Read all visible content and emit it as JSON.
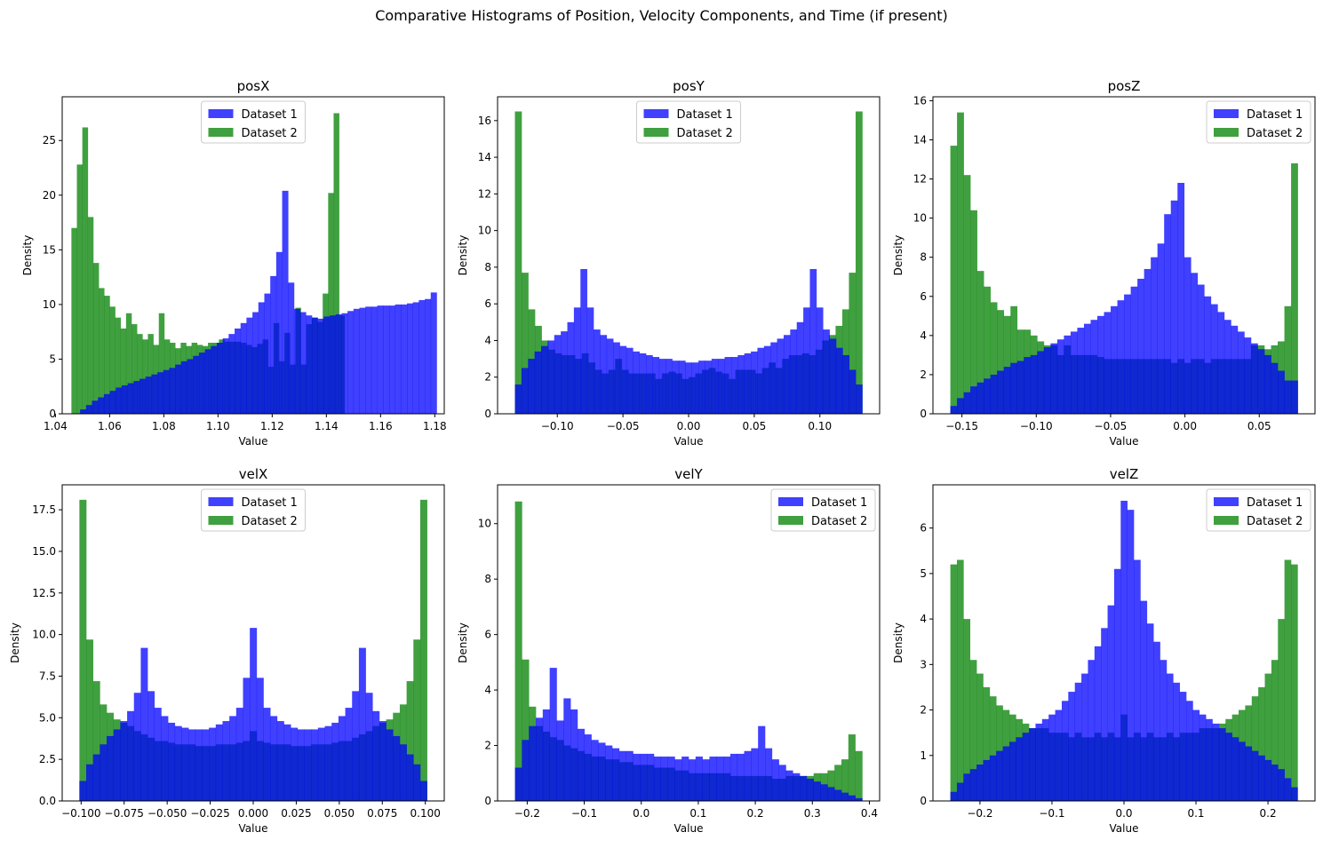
{
  "figure": {
    "title": "Comparative Histograms of Position, Velocity Components, and Time (if present)"
  },
  "colors": {
    "dataset1": "#0000ff",
    "dataset2": "#008000",
    "overlap": "#0f6f3f",
    "axis": "#000000"
  },
  "chart_data": [
    {
      "type": "bar",
      "title": "posX",
      "xlabel": "Value",
      "ylabel": "Density",
      "xlim": [
        1.0425,
        1.1835
      ],
      "ylim": [
        0,
        29
      ],
      "xticks": [
        1.04,
        1.06,
        1.08,
        1.1,
        1.12,
        1.14,
        1.16,
        1.18
      ],
      "xtick_labels": [
        "1.04",
        "1.06",
        "1.08",
        "1.10",
        "1.12",
        "1.14",
        "1.16",
        "1.18"
      ],
      "yticks": [
        0,
        5,
        10,
        15,
        20,
        25
      ],
      "ytick_labels": [
        "0",
        "5",
        "10",
        "15",
        "20",
        "25"
      ],
      "legend": {
        "position": "upper-center",
        "labels": [
          "Dataset 1",
          "Dataset 2"
        ]
      },
      "series": [
        {
          "name": "Dataset 1",
          "range": [
            1.0491,
            1.1807
          ],
          "values": [
            0.4,
            0.8,
            1.2,
            1.5,
            1.8,
            2.1,
            2.4,
            2.6,
            2.8,
            3.0,
            3.2,
            3.4,
            3.6,
            3.8,
            4.0,
            4.2,
            4.5,
            4.8,
            5.0,
            5.3,
            5.6,
            5.9,
            6.2,
            6.5,
            6.9,
            7.3,
            7.8,
            8.3,
            8.8,
            9.3,
            10.2,
            11.0,
            12.6,
            14.8,
            20.4,
            12.0,
            9.6,
            9.3,
            9.0,
            8.8,
            8.7,
            8.9,
            9.0,
            9.1,
            9.2,
            9.4,
            9.6,
            9.7,
            9.8,
            9.8,
            9.9,
            9.9,
            9.9,
            10.0,
            10.0,
            10.1,
            10.2,
            10.4,
            10.5,
            11.1
          ]
        },
        {
          "name": "Dataset 2",
          "range": [
            1.0459,
            1.1467
          ],
          "values": [
            17.0,
            22.8,
            26.2,
            18.0,
            13.8,
            11.5,
            10.8,
            9.8,
            8.8,
            7.8,
            9.2,
            8.2,
            7.3,
            6.8,
            7.3,
            6.3,
            9.2,
            6.8,
            6.5,
            6.0,
            6.5,
            6.2,
            6.5,
            6.3,
            6.2,
            6.5,
            6.5,
            6.8,
            6.6,
            6.6,
            6.6,
            6.5,
            6.3,
            6.1,
            6.4,
            6.8,
            4.3,
            8.3,
            4.8,
            7.4,
            4.5,
            9.7,
            4.5,
            8.2,
            8.8,
            8.4,
            11.0,
            20.2,
            27.5,
            9.0
          ]
        }
      ]
    },
    {
      "type": "bar",
      "title": "posY",
      "xlabel": "Value",
      "ylabel": "Density",
      "xlim": [
        -0.1455,
        0.1455
      ],
      "ylim": [
        0,
        17.3
      ],
      "xticks": [
        -0.1,
        -0.05,
        0.0,
        0.05,
        0.1
      ],
      "xtick_labels": [
        "−0.10",
        "−0.05",
        "0.00",
        "0.05",
        "0.10"
      ],
      "yticks": [
        0,
        2,
        4,
        6,
        8,
        10,
        12,
        14,
        16
      ],
      "ytick_labels": [
        "0",
        "2",
        "4",
        "6",
        "8",
        "10",
        "12",
        "14",
        "16"
      ],
      "legend": {
        "position": "upper-center",
        "labels": [
          "Dataset 1",
          "Dataset 2"
        ]
      },
      "series": [
        {
          "name": "Dataset 1",
          "range": [
            -0.1323,
            0.1323
          ],
          "values": [
            1.6,
            2.5,
            3.0,
            3.4,
            3.7,
            4.0,
            4.3,
            4.5,
            5.0,
            5.8,
            7.9,
            5.8,
            4.6,
            4.3,
            4.1,
            3.9,
            3.7,
            3.6,
            3.4,
            3.3,
            3.2,
            3.1,
            3.0,
            3.0,
            2.9,
            2.9,
            2.8,
            2.8,
            2.9,
            2.9,
            3.0,
            3.0,
            3.1,
            3.1,
            3.2,
            3.3,
            3.4,
            3.6,
            3.7,
            3.9,
            4.1,
            4.3,
            4.6,
            5.0,
            5.8,
            7.9,
            5.8,
            4.6,
            4.1,
            3.6,
            3.2,
            2.4,
            1.6
          ]
        },
        {
          "name": "Dataset 2",
          "range": [
            -0.1323,
            0.1323
          ],
          "values": [
            16.5,
            7.7,
            5.7,
            4.8,
            4.0,
            3.5,
            3.3,
            3.2,
            3.2,
            3.0,
            3.3,
            2.8,
            2.4,
            2.2,
            2.4,
            3.0,
            2.4,
            2.2,
            2.2,
            2.2,
            2.2,
            1.9,
            2.2,
            2.3,
            2.2,
            1.9,
            2.0,
            2.2,
            2.4,
            2.5,
            2.3,
            2.2,
            1.9,
            2.4,
            2.4,
            2.4,
            2.2,
            2.5,
            2.8,
            2.5,
            3.0,
            3.2,
            3.2,
            3.3,
            3.2,
            3.5,
            4.0,
            4.3,
            4.8,
            5.7,
            7.7,
            16.5
          ]
        }
      ]
    },
    {
      "type": "bar",
      "title": "posZ",
      "xlabel": "Value",
      "ylabel": "Density",
      "xlim": [
        -0.1695,
        0.0875
      ],
      "ylim": [
        0,
        16.2
      ],
      "xticks": [
        -0.15,
        -0.1,
        -0.05,
        0.0,
        0.05
      ],
      "xtick_labels": [
        "−0.15",
        "−0.10",
        "−0.05",
        "0.00",
        "0.05"
      ],
      "yticks": [
        0,
        2,
        4,
        6,
        8,
        10,
        12,
        14,
        16
      ],
      "ytick_labels": [
        "0",
        "2",
        "4",
        "6",
        "8",
        "10",
        "12",
        "14",
        "16"
      ],
      "legend": {
        "position": "upper-right",
        "labels": [
          "Dataset 1",
          "Dataset 2"
        ]
      },
      "series": [
        {
          "name": "Dataset 1",
          "range": [
            -0.1578,
            0.0759
          ],
          "values": [
            0.4,
            0.8,
            1.1,
            1.4,
            1.6,
            1.8,
            2.0,
            2.2,
            2.4,
            2.6,
            2.7,
            2.9,
            3.0,
            3.2,
            3.4,
            3.6,
            3.8,
            4.0,
            4.2,
            4.4,
            4.6,
            4.8,
            5.0,
            5.2,
            5.5,
            5.8,
            6.1,
            6.5,
            6.9,
            7.4,
            8.0,
            8.7,
            10.2,
            10.9,
            11.8,
            8.0,
            7.2,
            6.6,
            6.0,
            5.6,
            5.2,
            4.8,
            4.5,
            4.2,
            3.9,
            3.6,
            3.3,
            3.0,
            2.6,
            2.2,
            1.7,
            1.7
          ]
        },
        {
          "name": "Dataset 2",
          "range": [
            -0.1578,
            0.0759
          ],
          "values": [
            13.7,
            15.4,
            12.2,
            10.4,
            7.3,
            6.5,
            5.7,
            5.3,
            5.0,
            5.5,
            4.3,
            4.3,
            4.0,
            3.7,
            3.5,
            3.5,
            3.0,
            3.5,
            3.0,
            3.0,
            3.0,
            3.0,
            2.9,
            2.8,
            2.8,
            2.8,
            2.8,
            2.8,
            2.8,
            2.8,
            2.8,
            2.8,
            2.8,
            2.6,
            2.8,
            2.6,
            2.8,
            2.8,
            2.6,
            2.8,
            2.8,
            2.8,
            2.8,
            2.8,
            2.8,
            3.5,
            3.5,
            3.3,
            3.5,
            3.7,
            5.5,
            12.8
          ]
        }
      ]
    },
    {
      "type": "bar",
      "title": "velX",
      "xlabel": "Value",
      "ylabel": "Density",
      "xlim": [
        -0.111,
        0.111
      ],
      "ylim": [
        0,
        19
      ],
      "xticks": [
        -0.1,
        -0.075,
        -0.05,
        -0.025,
        0.0,
        0.025,
        0.05,
        0.075,
        0.1
      ],
      "xtick_labels": [
        "−0.100",
        "−0.075",
        "−0.050",
        "−0.025",
        "0.000",
        "0.025",
        "0.050",
        "0.075",
        "0.100"
      ],
      "yticks": [
        0,
        2.5,
        5.0,
        7.5,
        10.0,
        12.5,
        15.0,
        17.5
      ],
      "ytick_labels": [
        "0.0",
        "2.5",
        "5.0",
        "7.5",
        "10.0",
        "12.5",
        "15.0",
        "17.5"
      ],
      "legend": {
        "position": "upper-center",
        "labels": [
          "Dataset 1",
          "Dataset 2"
        ]
      },
      "series": [
        {
          "name": "Dataset 1",
          "range": [
            -0.101,
            0.101
          ],
          "values": [
            1.2,
            2.2,
            2.8,
            3.4,
            3.9,
            4.3,
            4.8,
            5.4,
            6.5,
            9.2,
            6.6,
            5.6,
            5.1,
            4.7,
            4.5,
            4.4,
            4.3,
            4.3,
            4.3,
            4.4,
            4.6,
            4.8,
            5.1,
            5.6,
            7.4,
            10.4,
            7.4,
            5.6,
            5.1,
            4.8,
            4.6,
            4.4,
            4.3,
            4.3,
            4.3,
            4.4,
            4.5,
            4.7,
            5.1,
            5.6,
            6.6,
            9.2,
            6.5,
            5.4,
            4.8,
            4.3,
            3.9,
            3.4,
            2.8,
            2.2,
            1.2
          ]
        },
        {
          "name": "Dataset 2",
          "range": [
            -0.101,
            0.101
          ],
          "values": [
            18.1,
            9.7,
            7.2,
            5.8,
            5.3,
            4.9,
            4.7,
            4.5,
            4.2,
            4.0,
            3.8,
            3.6,
            3.6,
            3.5,
            3.4,
            3.4,
            3.4,
            3.3,
            3.3,
            3.3,
            3.4,
            3.4,
            3.4,
            3.5,
            3.6,
            4.2,
            3.6,
            3.5,
            3.4,
            3.4,
            3.4,
            3.3,
            3.3,
            3.3,
            3.4,
            3.4,
            3.4,
            3.5,
            3.6,
            3.6,
            3.8,
            4.0,
            4.2,
            4.5,
            4.7,
            4.9,
            5.3,
            5.8,
            7.2,
            9.7,
            18.1
          ]
        }
      ]
    },
    {
      "type": "bar",
      "title": "velY",
      "xlabel": "Value",
      "ylabel": "Density",
      "xlim": [
        -0.252,
        0.418
      ],
      "ylim": [
        0,
        11.4
      ],
      "xticks": [
        -0.2,
        -0.1,
        0.0,
        0.1,
        0.2,
        0.3,
        0.4
      ],
      "xtick_labels": [
        "−0.2",
        "−0.1",
        "0.0",
        "0.1",
        "0.2",
        "0.3",
        "0.4"
      ],
      "yticks": [
        0,
        2,
        4,
        6,
        8,
        10
      ],
      "ytick_labels": [
        "0",
        "2",
        "4",
        "6",
        "8",
        "10"
      ],
      "legend": {
        "position": "upper-right",
        "labels": [
          "Dataset 1",
          "Dataset 2"
        ]
      },
      "series": [
        {
          "name": "Dataset 1",
          "range": [
            -0.2215,
            0.3875
          ],
          "values": [
            1.2,
            2.2,
            2.7,
            3.0,
            3.3,
            4.8,
            2.9,
            3.7,
            3.3,
            2.6,
            2.4,
            2.2,
            2.1,
            2.0,
            1.9,
            1.8,
            1.8,
            1.7,
            1.7,
            1.7,
            1.6,
            1.6,
            1.6,
            1.5,
            1.6,
            1.5,
            1.6,
            1.5,
            1.6,
            1.6,
            1.6,
            1.7,
            1.7,
            1.8,
            1.9,
            2.7,
            1.9,
            1.5,
            1.3,
            1.1,
            1.0,
            0.9,
            0.8,
            0.7,
            0.6,
            0.5,
            0.4,
            0.3,
            0.2,
            0.1
          ]
        },
        {
          "name": "Dataset 2",
          "range": [
            -0.2215,
            0.3875
          ],
          "values": [
            10.8,
            5.1,
            3.4,
            2.7,
            2.5,
            2.3,
            2.2,
            2.0,
            1.9,
            1.8,
            1.7,
            1.6,
            1.6,
            1.5,
            1.5,
            1.4,
            1.4,
            1.3,
            1.3,
            1.3,
            1.2,
            1.2,
            1.2,
            1.1,
            1.1,
            1.0,
            1.0,
            1.0,
            1.0,
            1.0,
            1.0,
            0.9,
            0.9,
            0.9,
            0.9,
            0.9,
            0.9,
            0.8,
            0.8,
            0.9,
            0.9,
            0.9,
            0.9,
            1.0,
            1.0,
            1.1,
            1.3,
            1.5,
            2.4,
            1.8
          ]
        }
      ]
    },
    {
      "type": "bar",
      "title": "velZ",
      "xlabel": "Value",
      "ylabel": "Density",
      "xlim": [
        -0.2653,
        0.2653
      ],
      "ylim": [
        0,
        6.95
      ],
      "xticks": [
        -0.2,
        -0.1,
        0.0,
        0.1,
        0.2
      ],
      "xtick_labels": [
        "−0.2",
        "−0.1",
        "0.0",
        "0.1",
        "0.2"
      ],
      "yticks": [
        0,
        1,
        2,
        3,
        4,
        5,
        6
      ],
      "ytick_labels": [
        "0",
        "1",
        "2",
        "3",
        "4",
        "5",
        "6"
      ],
      "legend": {
        "position": "upper-right",
        "labels": [
          "Dataset 1",
          "Dataset 2"
        ]
      },
      "series": [
        {
          "name": "Dataset 1",
          "range": [
            -0.2411,
            0.2411
          ],
          "values": [
            0.2,
            0.4,
            0.6,
            0.7,
            0.8,
            0.9,
            1.0,
            1.1,
            1.2,
            1.3,
            1.4,
            1.5,
            1.6,
            1.7,
            1.8,
            1.9,
            2.0,
            2.2,
            2.4,
            2.6,
            2.8,
            3.1,
            3.4,
            3.8,
            4.3,
            5.1,
            6.6,
            6.4,
            5.3,
            4.4,
            3.9,
            3.5,
            3.1,
            2.8,
            2.6,
            2.4,
            2.2,
            2.0,
            1.9,
            1.8,
            1.7,
            1.6,
            1.5,
            1.4,
            1.3,
            1.2,
            1.1,
            1.0,
            0.9,
            0.8,
            0.7,
            0.5,
            0.3
          ]
        },
        {
          "name": "Dataset 2",
          "range": [
            -0.2411,
            0.2411
          ],
          "values": [
            5.2,
            5.3,
            4.0,
            3.1,
            2.8,
            2.5,
            2.3,
            2.1,
            2.0,
            1.9,
            1.8,
            1.7,
            1.6,
            1.6,
            1.6,
            1.5,
            1.5,
            1.5,
            1.4,
            1.5,
            1.4,
            1.4,
            1.5,
            1.4,
            1.5,
            1.4,
            1.9,
            1.4,
            1.5,
            1.4,
            1.5,
            1.4,
            1.4,
            1.5,
            1.4,
            1.5,
            1.5,
            1.5,
            1.6,
            1.6,
            1.6,
            1.7,
            1.8,
            1.9,
            2.0,
            2.1,
            2.3,
            2.5,
            2.8,
            3.1,
            4.0,
            5.3,
            5.2
          ]
        }
      ]
    }
  ]
}
